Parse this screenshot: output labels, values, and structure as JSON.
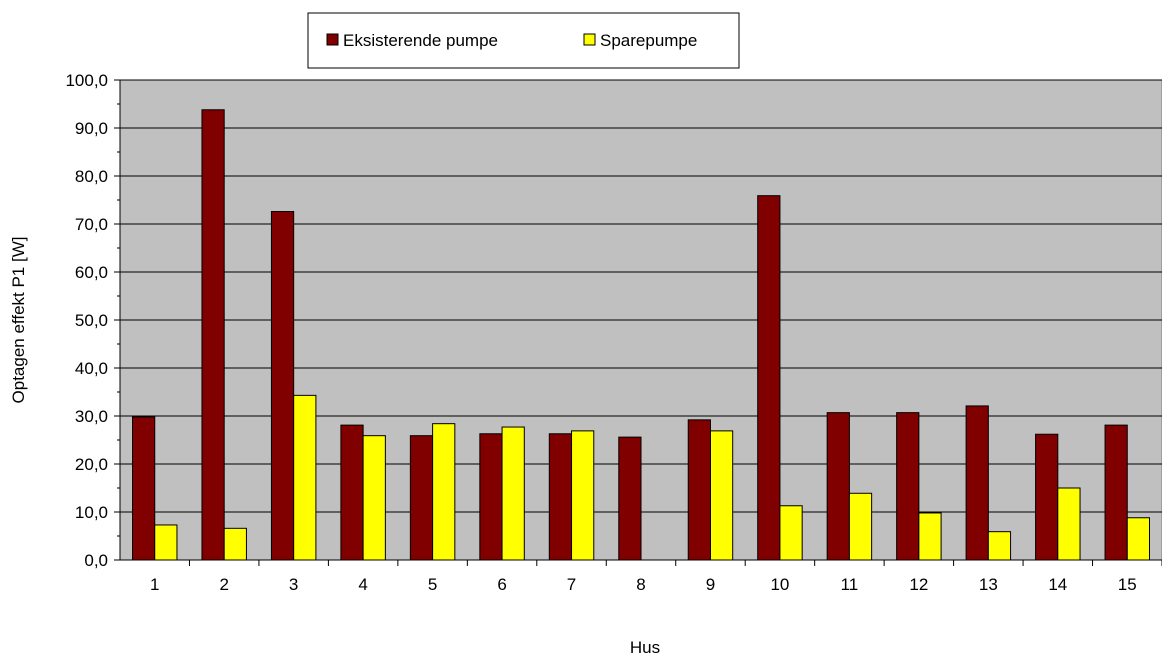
{
  "chart_data": {
    "type": "bar",
    "title": "",
    "xlabel": "Hus",
    "ylabel": "Optagen effekt P1 [W]",
    "ylim": [
      0,
      100
    ],
    "ytick_step": 10,
    "ytick_labels": [
      "0,0",
      "10,0",
      "20,0",
      "30,0",
      "40,0",
      "50,0",
      "60,0",
      "70,0",
      "80,0",
      "90,0",
      "100,0"
    ],
    "categories": [
      "1",
      "2",
      "3",
      "4",
      "5",
      "6",
      "7",
      "8",
      "9",
      "10",
      "11",
      "12",
      "13",
      "14",
      "15"
    ],
    "series": [
      {
        "name": "Eksisterende pumpe",
        "color": "#800000",
        "values": [
          29.8,
          93.8,
          72.6,
          28.1,
          25.9,
          26.3,
          26.3,
          25.6,
          29.2,
          75.9,
          30.7,
          30.7,
          32.1,
          26.2,
          28.1
        ]
      },
      {
        "name": "Sparepumpe",
        "color": "#FFFF00",
        "values": [
          7.3,
          6.6,
          34.3,
          25.9,
          28.4,
          27.7,
          26.9,
          null,
          26.9,
          11.3,
          13.9,
          9.8,
          5.9,
          15.0,
          8.8
        ]
      }
    ],
    "plot_background": "#C0C0C0",
    "grid": true,
    "legend_position": "top-center"
  }
}
